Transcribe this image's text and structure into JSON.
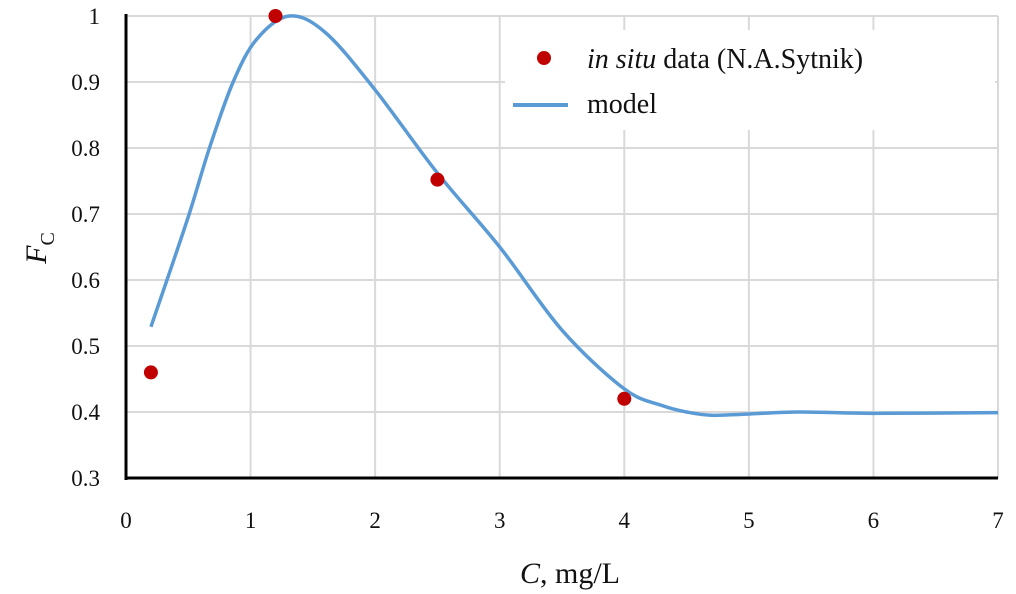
{
  "chart_data": {
    "type": "scatter+line",
    "xlabel": {
      "var": "C",
      "rest": ", mg/L"
    },
    "ylabel": {
      "var": "F",
      "sub": "C"
    },
    "xlim": [
      0,
      7
    ],
    "ylim": [
      0.3,
      1.0
    ],
    "xticks": [
      "0",
      "1",
      "2",
      "3",
      "4",
      "5",
      "6",
      "7"
    ],
    "yticks": [
      "0.3",
      "0.4",
      "0.5",
      "0.6",
      "0.7",
      "0.8",
      "0.9",
      "1"
    ],
    "grid": true,
    "legend_position": "top-right",
    "series": [
      {
        "name_italic": "in situ",
        "name_rest": " data (N.A.Sytnik)",
        "kind": "scatter",
        "color": "#c00000",
        "x": [
          0.2,
          1.2,
          2.5,
          4.0
        ],
        "y": [
          0.46,
          1.0,
          0.752,
          0.42
        ]
      },
      {
        "name": "model",
        "kind": "line",
        "color": "#5b9bd5",
        "x": [
          0.2,
          0.49,
          0.67,
          0.86,
          1.05,
          1.31,
          1.6,
          2.0,
          2.5,
          3.0,
          3.5,
          4.0,
          4.3,
          4.5,
          4.7,
          5.0,
          5.4,
          6.0,
          7.0
        ],
        "y": [
          0.529,
          0.69,
          0.8,
          0.9,
          0.965,
          1.0,
          0.975,
          0.888,
          0.762,
          0.65,
          0.524,
          0.435,
          0.41,
          0.4,
          0.395,
          0.397,
          0.4,
          0.398,
          0.399
        ]
      }
    ]
  }
}
